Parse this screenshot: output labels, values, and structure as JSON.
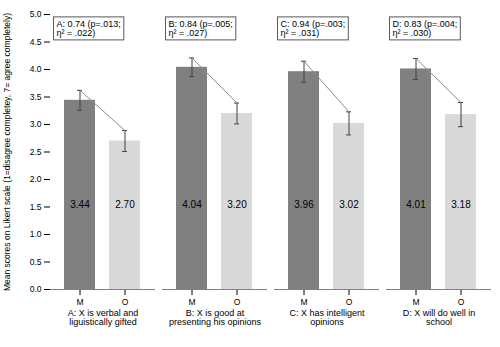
{
  "chart_data": {
    "type": "bar",
    "ylabel": "Mean scores on Likert scale (1=disagree completey, 7= agree completely)",
    "categories": [
      "A: X is verbal and liguistically gifted",
      "B: X is good at presenting his opinions",
      "C: X has intelligent opinions",
      "D: X will do well in school"
    ],
    "series": [
      {
        "name": "M",
        "color": "#808080",
        "values": [
          3.44,
          4.04,
          3.96,
          4.01
        ],
        "value_labels": [
          "3.44",
          "4.04",
          "3.96",
          "4.01"
        ],
        "errors": [
          0.18,
          0.17,
          0.19,
          0.19
        ]
      },
      {
        "name": "O",
        "color": "#d9d9d9",
        "values": [
          2.7,
          3.2,
          3.02,
          3.18
        ],
        "value_labels": [
          "2.70",
          "3.20",
          "3.02",
          "3.18"
        ],
        "errors": [
          0.19,
          0.19,
          0.21,
          0.22
        ]
      }
    ],
    "annotations": [
      "A: 0.74 (p=.013;\nη² = .022)",
      "B: 0.84 (p=.005;\nη² = .027)",
      "C: 0.94 (p=.003;\nη² = .031)",
      "D: 0.83 (p=.004;\nη² = .030)"
    ],
    "ylim": [
      0,
      5
    ],
    "yticks": [
      {
        "value": 0,
        "label": "0.0"
      },
      {
        "value": 0.5,
        "label": "0.5"
      },
      {
        "value": 1,
        "label": "1.0"
      },
      {
        "value": 1.5,
        "label": "1.5"
      },
      {
        "value": 2,
        "label": "2.0"
      },
      {
        "value": 2.5,
        "label": "2.5"
      },
      {
        "value": 3,
        "label": "3.0"
      },
      {
        "value": 3.5,
        "label": "3.5"
      },
      {
        "value": 4,
        "label": "4.0"
      },
      {
        "value": 4.5,
        "label": "4.5"
      },
      {
        "value": 5,
        "label": "5.0"
      }
    ],
    "grid": false,
    "data_labels": true
  }
}
